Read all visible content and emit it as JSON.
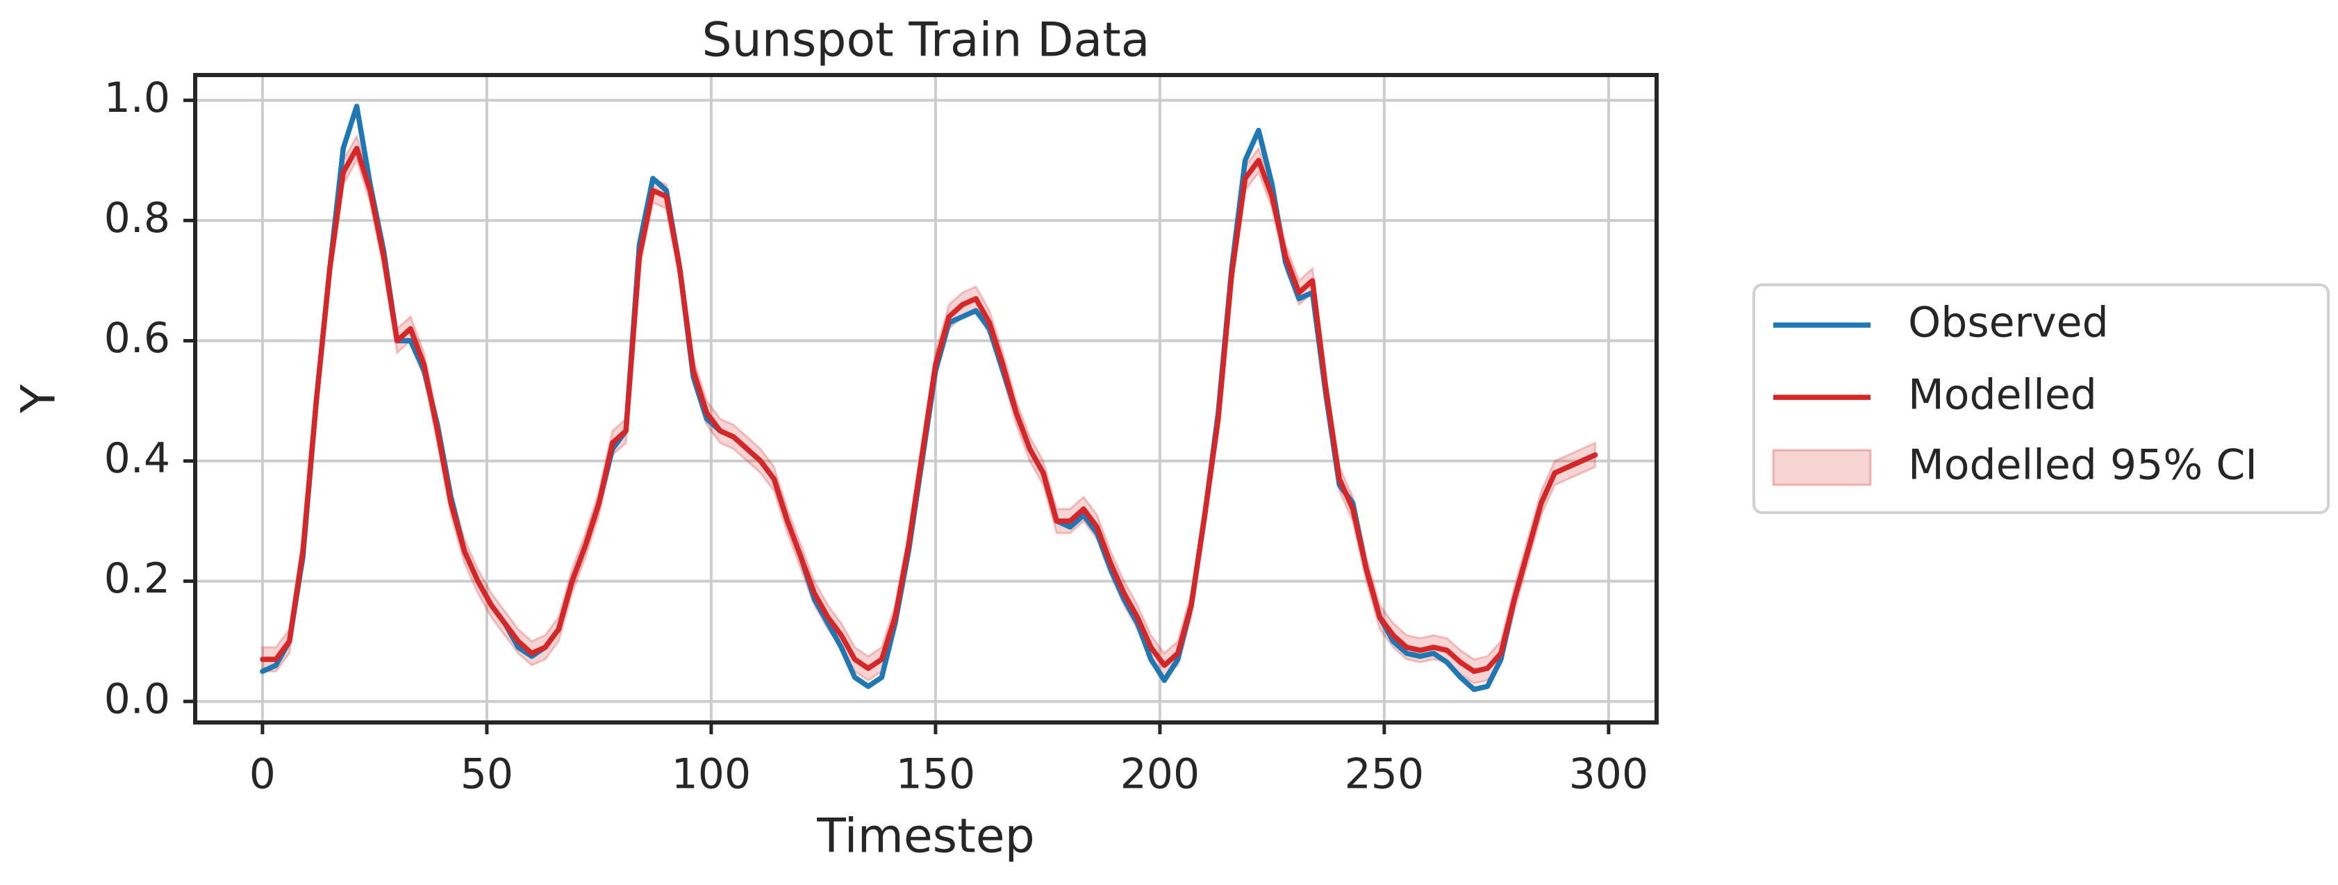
{
  "chart_data": {
    "type": "line",
    "title": "Sunspot Train Data",
    "x_label": "Timestep",
    "y_label": "Y",
    "x": [
      0,
      3,
      6,
      9,
      12,
      15,
      18,
      21,
      24,
      27,
      30,
      33,
      36,
      39,
      42,
      45,
      48,
      51,
      54,
      57,
      60,
      63,
      66,
      69,
      72,
      75,
      78,
      81,
      84,
      87,
      90,
      93,
      96,
      99,
      102,
      105,
      108,
      111,
      114,
      117,
      120,
      123,
      126,
      129,
      132,
      135,
      138,
      141,
      144,
      147,
      150,
      153,
      156,
      159,
      162,
      165,
      168,
      171,
      174,
      177,
      180,
      183,
      186,
      189,
      192,
      195,
      198,
      201,
      204,
      207,
      210,
      213,
      216,
      219,
      222,
      225,
      228,
      231,
      234,
      237,
      240,
      243,
      246,
      249,
      252,
      255,
      258,
      261,
      264,
      267,
      270,
      273,
      276,
      279,
      282,
      285,
      288,
      291,
      294,
      297
    ],
    "series": [
      {
        "name": "Observed",
        "color": "#1f77b4",
        "values": [
          0.05,
          0.06,
          0.1,
          0.24,
          0.5,
          0.72,
          0.92,
          0.99,
          0.86,
          0.75,
          0.6,
          0.6,
          0.55,
          0.46,
          0.34,
          0.25,
          0.2,
          0.16,
          0.13,
          0.09,
          0.075,
          0.09,
          0.12,
          0.2,
          0.26,
          0.33,
          0.42,
          0.45,
          0.76,
          0.87,
          0.85,
          0.72,
          0.54,
          0.47,
          0.45,
          0.44,
          0.42,
          0.4,
          0.37,
          0.3,
          0.24,
          0.17,
          0.13,
          0.09,
          0.04,
          0.025,
          0.04,
          0.13,
          0.25,
          0.4,
          0.55,
          0.63,
          0.64,
          0.65,
          0.62,
          0.55,
          0.48,
          0.42,
          0.38,
          0.3,
          0.29,
          0.31,
          0.28,
          0.22,
          0.17,
          0.13,
          0.07,
          0.035,
          0.07,
          0.16,
          0.31,
          0.48,
          0.72,
          0.9,
          0.95,
          0.86,
          0.73,
          0.67,
          0.68,
          0.51,
          0.36,
          0.33,
          0.22,
          0.14,
          0.1,
          0.08,
          0.075,
          0.08,
          0.065,
          0.04,
          0.02,
          0.025,
          0.07,
          0.17,
          0.25,
          0.33,
          0.38,
          0.39,
          0.4,
          0.41
        ]
      },
      {
        "name": "Modelled",
        "color": "#d62728",
        "values": [
          0.07,
          0.07,
          0.1,
          0.25,
          0.5,
          0.72,
          0.88,
          0.92,
          0.85,
          0.74,
          0.6,
          0.62,
          0.56,
          0.45,
          0.33,
          0.25,
          0.2,
          0.16,
          0.13,
          0.1,
          0.08,
          0.09,
          0.12,
          0.2,
          0.26,
          0.33,
          0.43,
          0.45,
          0.74,
          0.85,
          0.84,
          0.72,
          0.55,
          0.48,
          0.45,
          0.44,
          0.42,
          0.4,
          0.37,
          0.3,
          0.24,
          0.18,
          0.14,
          0.11,
          0.07,
          0.055,
          0.07,
          0.14,
          0.26,
          0.41,
          0.56,
          0.64,
          0.66,
          0.67,
          0.63,
          0.56,
          0.48,
          0.42,
          0.38,
          0.3,
          0.3,
          0.32,
          0.29,
          0.23,
          0.18,
          0.14,
          0.09,
          0.06,
          0.08,
          0.16,
          0.31,
          0.47,
          0.71,
          0.87,
          0.9,
          0.84,
          0.74,
          0.68,
          0.7,
          0.52,
          0.37,
          0.32,
          0.22,
          0.14,
          0.11,
          0.09,
          0.085,
          0.09,
          0.085,
          0.065,
          0.05,
          0.055,
          0.08,
          0.17,
          0.25,
          0.33,
          0.38,
          0.39,
          0.4,
          0.41
        ]
      }
    ],
    "band": {
      "name": "Modelled 95% CI",
      "color": "#d62728",
      "lower": [
        0.05,
        0.05,
        0.08,
        0.23,
        0.48,
        0.7,
        0.86,
        0.9,
        0.83,
        0.72,
        0.58,
        0.6,
        0.54,
        0.43,
        0.31,
        0.23,
        0.18,
        0.14,
        0.11,
        0.08,
        0.06,
        0.07,
        0.1,
        0.18,
        0.24,
        0.31,
        0.41,
        0.43,
        0.72,
        0.83,
        0.82,
        0.7,
        0.53,
        0.46,
        0.43,
        0.42,
        0.4,
        0.38,
        0.35,
        0.28,
        0.22,
        0.16,
        0.12,
        0.09,
        0.05,
        0.035,
        0.05,
        0.12,
        0.24,
        0.39,
        0.54,
        0.62,
        0.64,
        0.65,
        0.61,
        0.54,
        0.46,
        0.4,
        0.36,
        0.28,
        0.28,
        0.3,
        0.27,
        0.21,
        0.16,
        0.12,
        0.07,
        0.04,
        0.06,
        0.14,
        0.29,
        0.45,
        0.69,
        0.85,
        0.88,
        0.82,
        0.72,
        0.66,
        0.68,
        0.5,
        0.35,
        0.3,
        0.2,
        0.12,
        0.09,
        0.07,
        0.065,
        0.07,
        0.065,
        0.045,
        0.03,
        0.035,
        0.06,
        0.15,
        0.23,
        0.31,
        0.36,
        0.37,
        0.38,
        0.39
      ],
      "upper": [
        0.09,
        0.09,
        0.12,
        0.27,
        0.52,
        0.74,
        0.9,
        0.94,
        0.87,
        0.76,
        0.62,
        0.64,
        0.58,
        0.47,
        0.35,
        0.27,
        0.22,
        0.18,
        0.15,
        0.12,
        0.1,
        0.11,
        0.14,
        0.22,
        0.28,
        0.35,
        0.45,
        0.47,
        0.76,
        0.87,
        0.86,
        0.74,
        0.57,
        0.5,
        0.47,
        0.46,
        0.44,
        0.42,
        0.39,
        0.32,
        0.26,
        0.2,
        0.16,
        0.13,
        0.09,
        0.075,
        0.09,
        0.16,
        0.28,
        0.43,
        0.58,
        0.66,
        0.68,
        0.69,
        0.65,
        0.58,
        0.5,
        0.44,
        0.4,
        0.32,
        0.32,
        0.34,
        0.31,
        0.25,
        0.2,
        0.16,
        0.11,
        0.08,
        0.1,
        0.18,
        0.33,
        0.49,
        0.73,
        0.89,
        0.92,
        0.86,
        0.76,
        0.7,
        0.72,
        0.54,
        0.39,
        0.34,
        0.24,
        0.16,
        0.13,
        0.11,
        0.105,
        0.11,
        0.105,
        0.085,
        0.07,
        0.075,
        0.1,
        0.19,
        0.27,
        0.35,
        0.4,
        0.41,
        0.42,
        0.43
      ]
    },
    "xlim": [
      -15,
      310.7
    ],
    "ylim": [
      -0.035,
      1.042
    ],
    "xticks": [
      0,
      50,
      100,
      150,
      200,
      250,
      300
    ],
    "yticks": [
      {
        "value": 0,
        "label": "0.0"
      },
      0.2,
      0.4,
      0.6,
      0.8,
      {
        "value": 1,
        "label": "1.0"
      }
    ],
    "grid": true,
    "legend": "right"
  }
}
